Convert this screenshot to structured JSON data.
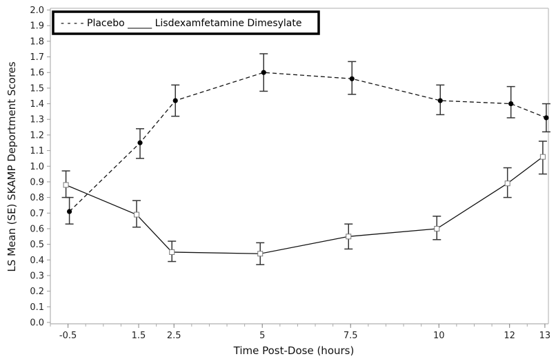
{
  "chart_data": {
    "type": "line",
    "title": "",
    "xlabel": "Time Post-Dose (hours)",
    "ylabel": "LS Mean (SE) SKAMP Deportment Scores",
    "xlim": [
      -1.0,
      13.1
    ],
    "ylim": [
      0.0,
      2.02
    ],
    "x_ticks": [
      -0.5,
      1.5,
      2.5,
      5,
      7.5,
      10,
      12,
      13
    ],
    "x_tick_labels": [
      "-0.5",
      "1.5",
      "2.5",
      "5",
      "7.5",
      "10",
      "12",
      "13"
    ],
    "y_ticks": [
      0.0,
      0.1,
      0.2,
      0.3,
      0.4,
      0.5,
      0.6,
      0.7,
      0.8,
      0.9,
      1.0,
      1.1,
      1.2,
      1.3,
      1.4,
      1.5,
      1.6,
      1.7,
      1.8,
      1.9,
      2.0
    ],
    "y_tick_labels": [
      "0.0",
      "0.1",
      "0.2",
      "0.3",
      "0.4",
      "0.5",
      "0.6",
      "0.7",
      "0.8",
      "0.9",
      "1.0",
      "1.1",
      "1.2",
      "1.3",
      "1.4",
      "1.5",
      "1.6",
      "1.7",
      "1.8",
      "1.9",
      "2.0"
    ],
    "grid": false,
    "legend": {
      "placement": "top-left",
      "text": "- - - - Placebo _____ Lisdexamfetamine Dimesylate"
    },
    "x": [
      -0.5,
      1.5,
      2.5,
      5,
      7.5,
      10,
      12,
      13
    ],
    "series": [
      {
        "name": "Placebo",
        "style": "dashed",
        "marker": "filled-circle",
        "color": "#000000",
        "values": [
          0.71,
          1.15,
          1.42,
          1.6,
          1.56,
          1.42,
          1.4,
          1.31
        ],
        "error_low": [
          0.63,
          1.05,
          1.32,
          1.48,
          1.46,
          1.33,
          1.31,
          1.22
        ],
        "error_high": [
          0.8,
          1.24,
          1.52,
          1.72,
          1.67,
          1.52,
          1.51,
          1.4
        ]
      },
      {
        "name": "Lisdexamfetamine Dimesylate",
        "style": "solid",
        "marker": "open-square",
        "color": "#000000",
        "values": [
          0.88,
          0.69,
          0.45,
          0.44,
          0.55,
          0.6,
          0.89,
          1.06
        ],
        "error_low": [
          0.8,
          0.61,
          0.39,
          0.37,
          0.47,
          0.53,
          0.8,
          0.95
        ],
        "error_high": [
          0.97,
          0.78,
          0.52,
          0.51,
          0.63,
          0.68,
          0.99,
          1.16
        ]
      }
    ]
  }
}
